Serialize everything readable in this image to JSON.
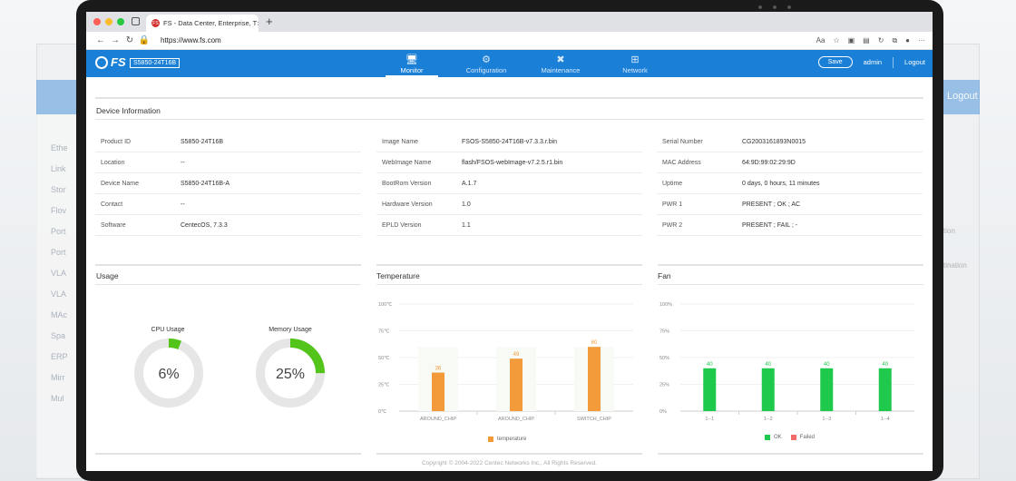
{
  "background": {
    "logout": "Logout",
    "sidebar_items": [
      "Ethe",
      "Link",
      "Stor",
      "Flov",
      "Port",
      "Port",
      "VLA",
      "VLA",
      "MAc",
      "Spa",
      "ERP",
      "Mirr",
      "Mul"
    ],
    "right_texts": [
      "tion",
      "tination"
    ]
  },
  "browser": {
    "tab_title": "FS - Data Center, Enterprise, T",
    "url": "https://www.fs.com"
  },
  "header": {
    "logo": "FS",
    "model_badge": "S5850-24T16B",
    "menu": [
      "Monitor",
      "Configuration",
      "Maintenance",
      "Network"
    ],
    "active_menu": "Monitor",
    "save": "Save",
    "user": "admin",
    "logout": "Logout",
    "colors": {
      "header": "#1a7fd6"
    }
  },
  "device_info": {
    "title": "Device Information",
    "col1": [
      {
        "label": "Product ID",
        "value": "S5850-24T16B"
      },
      {
        "label": "Location",
        "value": "--"
      },
      {
        "label": "Device Name",
        "value": "S5850-24T16B-A"
      },
      {
        "label": "Contact",
        "value": "--"
      },
      {
        "label": "Software",
        "value": "CentecOS, 7.3.3"
      }
    ],
    "col2": [
      {
        "label": "Image Name",
        "value": "FSOS-S5850-24T16B-v7.3.3.r.bin"
      },
      {
        "label": "WebImage Name",
        "value": "flash/FSOS-webImage-v7.2.5.r1.bin"
      },
      {
        "label": "BootRom Version",
        "value": "A.1.7"
      },
      {
        "label": "Hardware Version",
        "value": "1.0"
      },
      {
        "label": "EPLD Version",
        "value": "1.1"
      }
    ],
    "col3": [
      {
        "label": "Serial Number",
        "value": "CG2003161893N0015"
      },
      {
        "label": "MAC Address",
        "value": "64:9D:99:02:29:9D"
      },
      {
        "label": "Uptime",
        "value": "0 days, 0 hours, 11 minutes"
      },
      {
        "label": "PWR 1",
        "value": "PRESENT ; OK ; AC"
      },
      {
        "label": "PWR 2",
        "value": "PRESENT ; FAIL ; -"
      }
    ]
  },
  "usage": {
    "title": "Usage",
    "cpu": {
      "label": "CPU Usage",
      "value_text": "6%",
      "fraction": 0.06
    },
    "memory": {
      "label": "Memory Usage",
      "value_text": "25%",
      "fraction": 0.25
    },
    "colors": {
      "fill": "#52c41a",
      "track": "#e6e6e6"
    }
  },
  "temperature": {
    "title": "Temperature",
    "chart_data": {
      "type": "bar",
      "categories": [
        "AROUND_CHIP",
        "AROUND_CHIP",
        "SWITCH_CHIP"
      ],
      "series": [
        {
          "name": "temperature",
          "values": [
            36,
            49,
            60
          ]
        }
      ],
      "yticks": [
        "100℃",
        "75℃",
        "50℃",
        "25℃",
        "0℃"
      ],
      "ylim": [
        0,
        100
      ],
      "color": "#f39a3a"
    }
  },
  "fan": {
    "title": "Fan",
    "chart_data": {
      "type": "bar",
      "categories": [
        "1--1",
        "1--2",
        "1--3",
        "1--4"
      ],
      "series": [
        {
          "name": "OK",
          "values": [
            40,
            40,
            40,
            40
          ]
        }
      ],
      "legend": [
        "OK",
        "Failed"
      ],
      "yticks": [
        "100%",
        "75%",
        "50%",
        "25%",
        "0%"
      ],
      "ylim": [
        0,
        100
      ],
      "colors": {
        "ok": "#1ec94c",
        "failed": "#f26b6b"
      }
    }
  },
  "footer": "Copyright © 2004-2022 Centec Networks Inc., All Rights Reserved."
}
